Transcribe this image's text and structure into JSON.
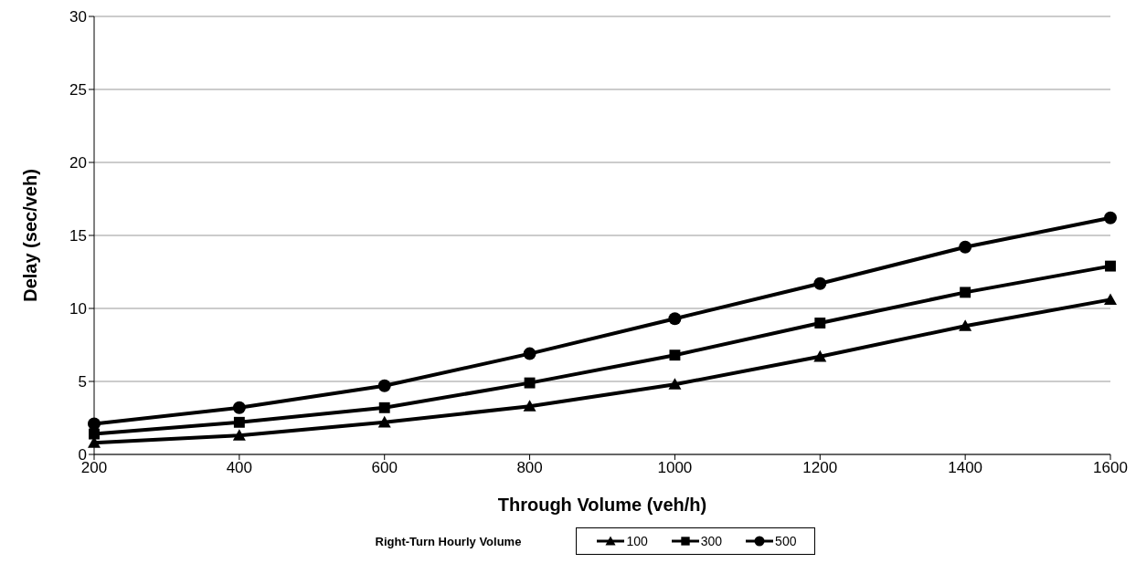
{
  "chart_data": {
    "type": "line",
    "xlabel": "Through Volume (veh/h)",
    "ylabel": "Delay (sec/veh)",
    "legend_title": "Right-Turn Hourly Volume",
    "legend": "bottom",
    "grid": "y",
    "line_style": "solid",
    "categories": [
      "200",
      "400",
      "600",
      "800",
      "1000",
      "1200",
      "1400",
      "1600"
    ],
    "ylim": [
      0,
      30
    ],
    "yticks": [
      0,
      5,
      10,
      15,
      20,
      25,
      30
    ],
    "series": [
      {
        "name": "100",
        "color": "#000000",
        "marker": "triangle",
        "values": [
          0.8,
          1.3,
          2.2,
          3.3,
          4.8,
          6.7,
          8.8,
          10.6
        ]
      },
      {
        "name": "300",
        "color": "#000000",
        "marker": "square",
        "values": [
          1.4,
          2.2,
          3.2,
          4.9,
          6.8,
          9.0,
          11.1,
          12.9
        ]
      },
      {
        "name": "500",
        "color": "#000000",
        "marker": "circle",
        "values": [
          2.1,
          3.2,
          4.7,
          6.9,
          9.3,
          11.7,
          14.2,
          16.2
        ]
      }
    ]
  }
}
